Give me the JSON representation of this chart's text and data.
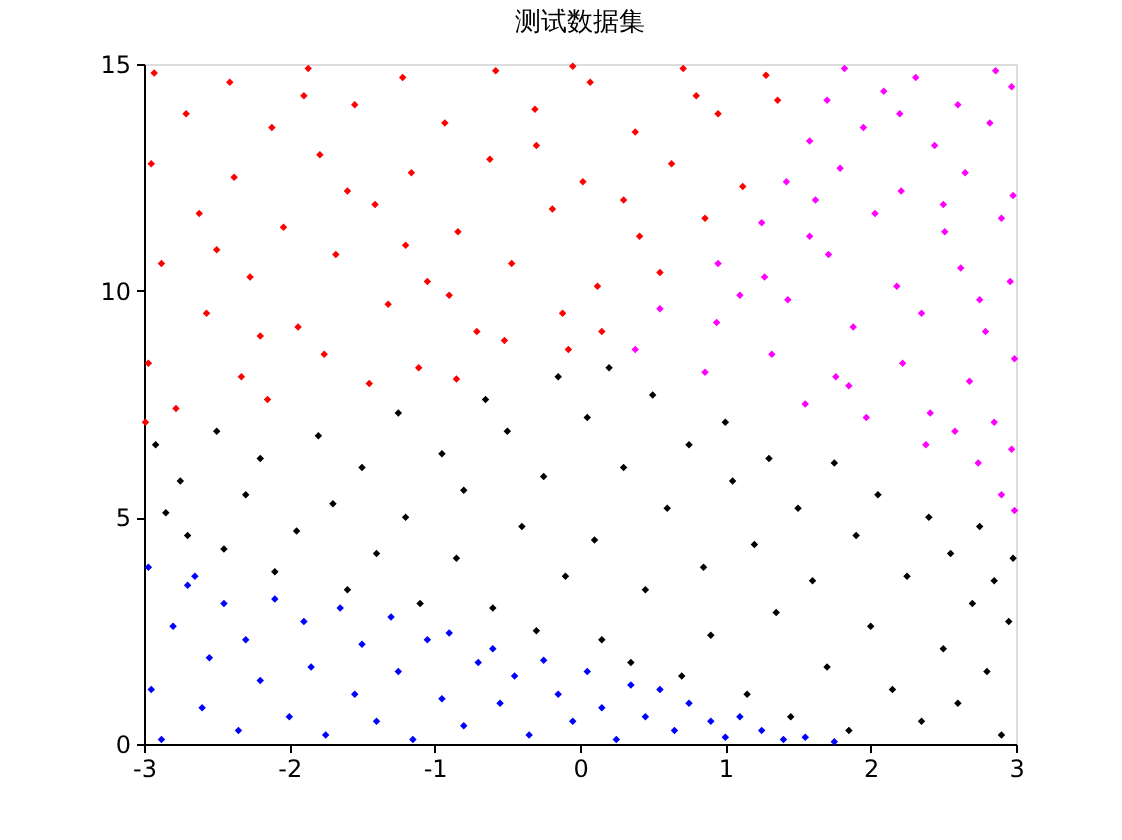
{
  "chart_data": {
    "type": "scatter",
    "title": "测试数据集",
    "series": [
      {
        "color": "#ff0000",
        "x": [
          -2.93,
          -2.41,
          -1.87,
          -1.22,
          -0.58,
          0.07,
          0.71,
          1.28,
          -2.71,
          -2.12,
          -1.55,
          -0.93,
          -0.31,
          0.38,
          0.95,
          1.36,
          -2.95,
          -2.38,
          -1.79,
          -1.16,
          -0.62,
          0.02,
          0.63,
          1.12,
          -2.62,
          -2.04,
          -1.41,
          -0.84,
          -0.19,
          0.41,
          0.86,
          -2.88,
          -2.27,
          -1.68,
          -1.05,
          -0.47,
          0.12,
          0.55,
          -2.57,
          -1.94,
          -1.32,
          -0.71,
          -0.12,
          0.15,
          -2.97,
          -2.33,
          -1.76,
          -1.11,
          -0.52,
          -0.08,
          -2.78,
          -2.15,
          -1.45,
          -2.99,
          -0.85,
          -1.6,
          -0.3,
          -2.5,
          0.3,
          -1.9,
          -0.9,
          0.8,
          -2.2,
          -1.2,
          -0.05
        ],
        "values": [
          14.8,
          14.6,
          14.9,
          14.7,
          14.85,
          14.6,
          14.9,
          14.75,
          13.9,
          13.6,
          14.1,
          13.7,
          14.0,
          13.5,
          13.9,
          14.2,
          12.8,
          12.5,
          13.0,
          12.6,
          12.9,
          12.4,
          12.8,
          12.3,
          11.7,
          11.4,
          11.9,
          11.3,
          11.8,
          11.2,
          11.6,
          10.6,
          10.3,
          10.8,
          10.2,
          10.6,
          10.1,
          10.4,
          9.5,
          9.2,
          9.7,
          9.1,
          9.5,
          9.1,
          8.4,
          8.1,
          8.6,
          8.3,
          8.9,
          8.7,
          7.4,
          7.6,
          7.95,
          7.1,
          8.05,
          12.2,
          13.2,
          10.9,
          12.0,
          14.3,
          9.9,
          14.3,
          9.0,
          11.0,
          14.95
        ]
      },
      {
        "color": "#ff00ff",
        "x": [
          1.82,
          2.31,
          2.86,
          1.7,
          2.09,
          2.6,
          2.97,
          1.58,
          1.95,
          2.44,
          2.82,
          1.42,
          1.79,
          2.21,
          2.65,
          2.98,
          1.25,
          1.58,
          2.03,
          2.51,
          2.9,
          0.95,
          1.27,
          1.71,
          2.18,
          2.62,
          2.96,
          0.55,
          0.94,
          1.43,
          1.88,
          2.35,
          2.79,
          0.38,
          0.86,
          1.32,
          1.76,
          2.22,
          2.68,
          2.99,
          1.55,
          1.97,
          2.41,
          2.85,
          1.85,
          2.38,
          2.74,
          2.97,
          2.58,
          2.9,
          2.99,
          2.2,
          1.62,
          2.75,
          1.1,
          2.5
        ],
        "values": [
          14.9,
          14.7,
          14.85,
          14.2,
          14.4,
          14.1,
          14.5,
          13.3,
          13.6,
          13.2,
          13.7,
          12.4,
          12.7,
          12.2,
          12.6,
          12.1,
          11.5,
          11.2,
          11.7,
          11.3,
          11.6,
          10.6,
          10.3,
          10.8,
          10.1,
          10.5,
          10.2,
          9.6,
          9.3,
          9.8,
          9.2,
          9.5,
          9.1,
          8.7,
          8.2,
          8.6,
          8.1,
          8.4,
          8.0,
          8.5,
          7.5,
          7.2,
          7.3,
          7.1,
          7.9,
          6.6,
          6.2,
          6.5,
          6.9,
          5.5,
          5.15,
          13.9,
          12.0,
          9.8,
          9.9,
          11.9
        ]
      },
      {
        "color": "#000000",
        "x": [
          -2.92,
          -2.85,
          -2.7,
          -2.75,
          -2.5,
          -2.45,
          -2.3,
          -2.2,
          -2.1,
          -1.95,
          -1.8,
          -1.7,
          -1.6,
          -1.5,
          -1.4,
          -1.25,
          -1.2,
          -1.1,
          -0.95,
          -0.85,
          -0.8,
          -0.65,
          -0.6,
          -0.5,
          -0.4,
          -0.3,
          -0.25,
          -0.15,
          -0.1,
          0.05,
          0.1,
          0.15,
          0.2,
          0.3,
          0.35,
          0.45,
          0.5,
          0.6,
          0.7,
          0.75,
          0.85,
          0.9,
          1.0,
          1.05,
          1.15,
          1.2,
          1.3,
          1.35,
          1.45,
          1.5,
          1.6,
          1.7,
          1.75,
          1.85,
          1.9,
          2.0,
          2.05,
          2.15,
          2.25,
          2.35,
          2.4,
          2.5,
          2.55,
          2.6,
          2.7,
          2.75,
          2.8,
          2.9,
          2.95,
          2.98,
          2.85
        ],
        "values": [
          6.6,
          5.1,
          4.6,
          5.8,
          6.9,
          4.3,
          5.5,
          6.3,
          3.8,
          4.7,
          6.8,
          5.3,
          3.4,
          6.1,
          4.2,
          7.3,
          5.0,
          3.1,
          6.4,
          4.1,
          5.6,
          7.6,
          3.0,
          6.9,
          4.8,
          2.5,
          5.9,
          8.1,
          3.7,
          7.2,
          4.5,
          2.3,
          8.3,
          6.1,
          1.8,
          3.4,
          7.7,
          5.2,
          1.5,
          6.6,
          3.9,
          2.4,
          7.1,
          5.8,
          1.1,
          4.4,
          6.3,
          2.9,
          0.6,
          5.2,
          3.6,
          1.7,
          6.2,
          0.3,
          4.6,
          2.6,
          5.5,
          1.2,
          3.7,
          0.5,
          5.0,
          2.1,
          4.2,
          0.9,
          3.1,
          4.8,
          1.6,
          0.2,
          2.7,
          4.1,
          3.6
        ]
      },
      {
        "color": "#0000ff",
        "x": [
          -2.97,
          -2.95,
          -2.88,
          -2.8,
          -2.7,
          -2.6,
          -2.55,
          -2.45,
          -2.35,
          -2.3,
          -2.2,
          -2.1,
          -2.0,
          -1.9,
          -1.85,
          -1.75,
          -1.65,
          -1.55,
          -1.5,
          -1.4,
          -1.3,
          -1.25,
          -1.15,
          -1.05,
          -0.95,
          -0.9,
          -0.8,
          -0.7,
          -0.6,
          -0.55,
          -0.45,
          -0.35,
          -0.25,
          -0.15,
          -0.05,
          0.05,
          0.15,
          0.25,
          0.35,
          0.45,
          0.55,
          0.65,
          0.75,
          0.9,
          1.0,
          1.1,
          1.25,
          1.4,
          1.55,
          1.75,
          -2.65
        ],
        "values": [
          3.9,
          1.2,
          0.1,
          2.6,
          3.5,
          0.8,
          1.9,
          3.1,
          0.3,
          2.3,
          1.4,
          3.2,
          0.6,
          2.7,
          1.7,
          0.2,
          3.0,
          1.1,
          2.2,
          0.5,
          2.8,
          1.6,
          0.1,
          2.3,
          1.0,
          2.45,
          0.4,
          1.8,
          2.1,
          0.9,
          1.5,
          0.2,
          1.85,
          1.1,
          0.5,
          1.6,
          0.8,
          0.1,
          1.3,
          0.6,
          1.2,
          0.3,
          0.9,
          0.5,
          0.15,
          0.6,
          0.3,
          0.1,
          0.15,
          0.05,
          3.7
        ]
      }
    ],
    "marker": "diamond",
    "xlim": [
      -3,
      3
    ],
    "xticks": [
      -3,
      -2,
      -1,
      0,
      1,
      2,
      3
    ],
    "ylim": [
      0,
      15
    ],
    "yticks": [
      0,
      5,
      10,
      15
    ],
    "grid": false,
    "legend": false
  }
}
